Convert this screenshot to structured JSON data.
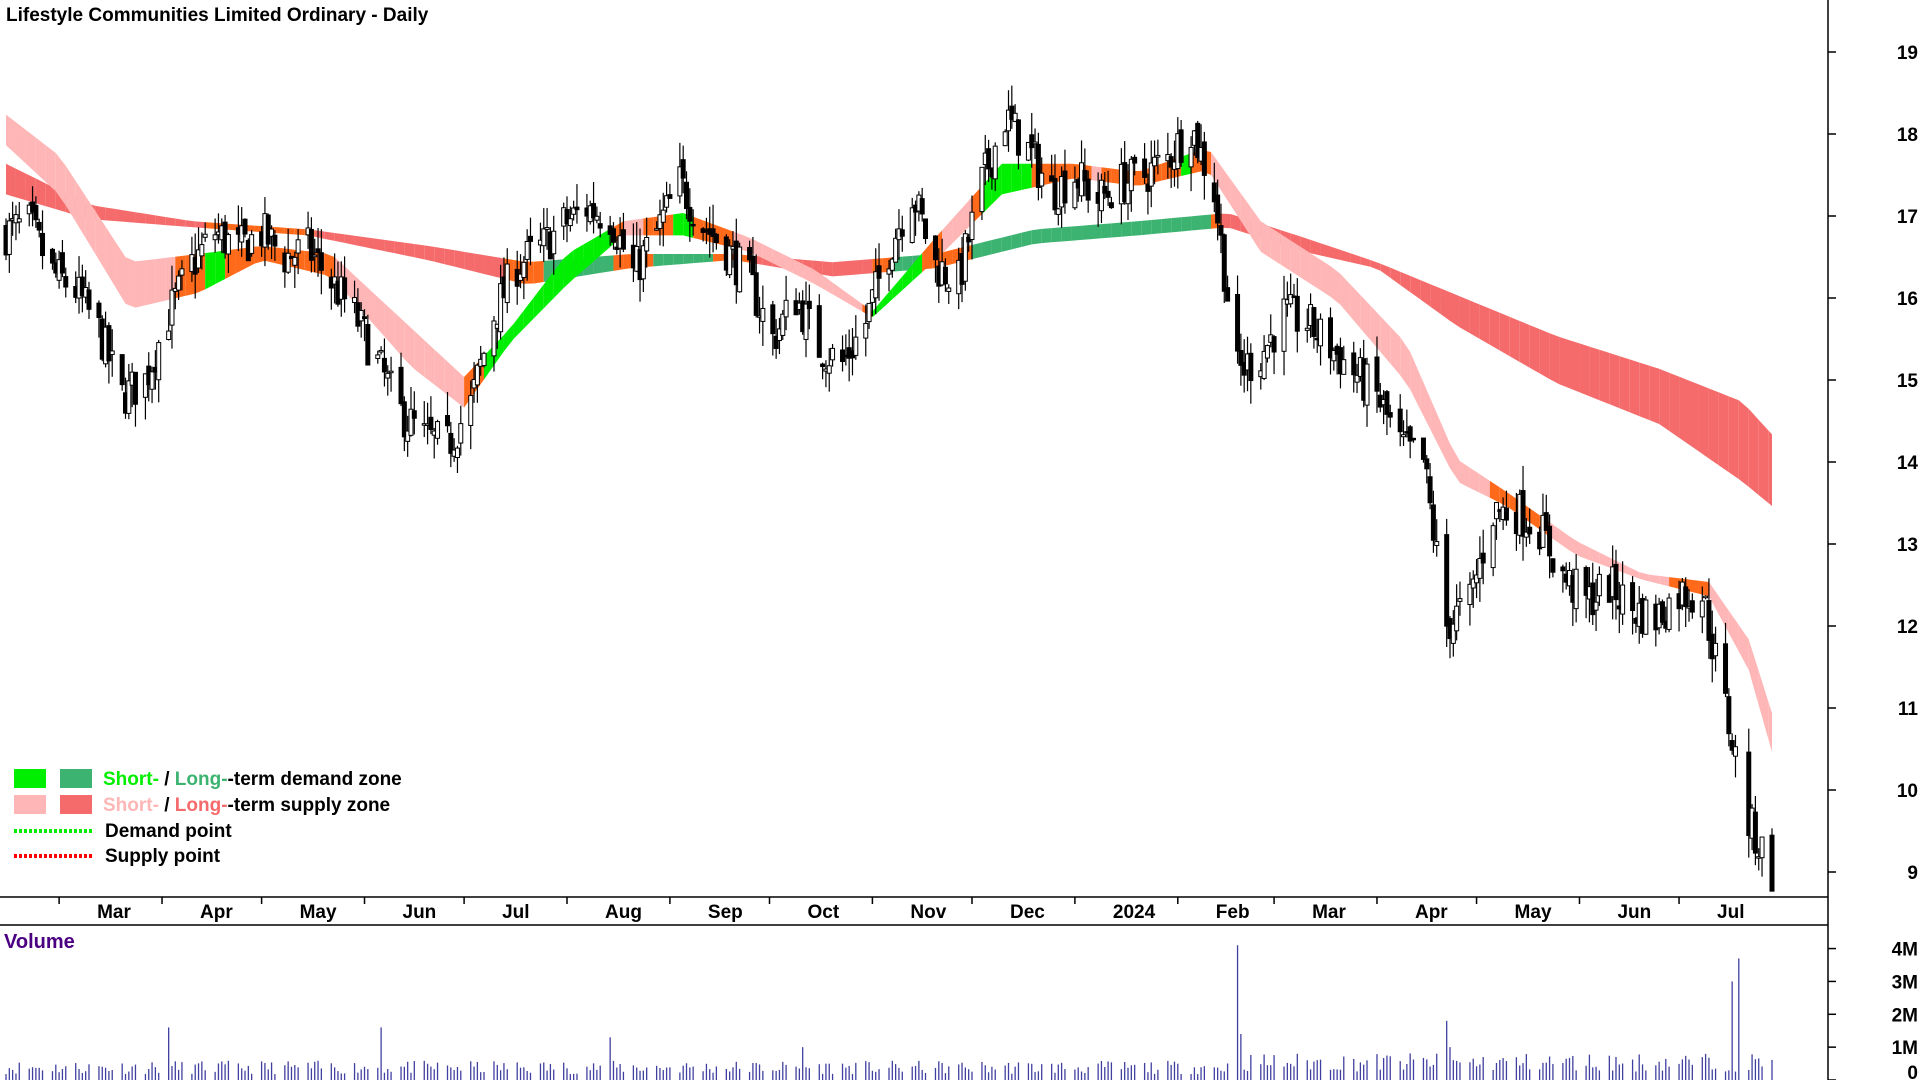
{
  "chart_data": {
    "type": "candlestick",
    "title": "Lifestyle Communities Limited Ordinary - Daily",
    "price_axis": {
      "ticks": [
        9,
        10,
        11,
        12,
        13,
        14,
        15,
        16,
        17,
        18,
        19
      ],
      "labels": [
        "9",
        "10",
        "11",
        "12",
        "13",
        "14",
        "15",
        "16",
        "17",
        "18",
        "19"
      ],
      "range": [
        8.7,
        19.6
      ]
    },
    "x_axis": {
      "start": "2023-02-13",
      "end": "2024-07-29",
      "months": [
        {
          "label": "Mar",
          "date": "2023-03-01"
        },
        {
          "label": "Apr",
          "date": "2023-04-01"
        },
        {
          "label": "May",
          "date": "2023-05-01"
        },
        {
          "label": "Jun",
          "date": "2023-06-01"
        },
        {
          "label": "Jul",
          "date": "2023-07-01"
        },
        {
          "label": "Aug",
          "date": "2023-08-01"
        },
        {
          "label": "Sep",
          "date": "2023-09-01"
        },
        {
          "label": "Oct",
          "date": "2023-10-01"
        },
        {
          "label": "Nov",
          "date": "2023-11-01"
        },
        {
          "label": "Dec",
          "date": "2023-12-01"
        },
        {
          "label": "2024",
          "date": "2024-01-01"
        },
        {
          "label": "Feb",
          "date": "2024-02-01"
        },
        {
          "label": "Mar",
          "date": "2024-03-01"
        },
        {
          "label": "Apr",
          "date": "2024-04-01"
        },
        {
          "label": "May",
          "date": "2024-05-01"
        },
        {
          "label": "Jun",
          "date": "2024-06-01"
        },
        {
          "label": "Jul",
          "date": "2024-07-01"
        }
      ]
    },
    "price_path": [
      [
        "2023-02-13",
        16.8
      ],
      [
        "2023-02-20",
        16.9
      ],
      [
        "2023-02-27",
        16.3
      ],
      [
        "2023-03-06",
        16.1
      ],
      [
        "2023-03-13",
        15.6
      ],
      [
        "2023-03-20",
        14.8
      ],
      [
        "2023-03-27",
        15.0
      ],
      [
        "2023-04-03",
        15.8
      ],
      [
        "2023-04-10",
        16.4
      ],
      [
        "2023-04-17",
        16.8
      ],
      [
        "2023-04-24",
        16.6
      ],
      [
        "2023-05-01",
        16.8
      ],
      [
        "2023-05-08",
        16.5
      ],
      [
        "2023-05-15",
        16.6
      ],
      [
        "2023-05-22",
        16.2
      ],
      [
        "2023-05-29",
        15.8
      ],
      [
        "2023-06-05",
        15.2
      ],
      [
        "2023-06-12",
        14.6
      ],
      [
        "2023-06-19",
        14.3
      ],
      [
        "2023-06-26",
        14.2
      ],
      [
        "2023-07-03",
        14.7
      ],
      [
        "2023-07-10",
        15.8
      ],
      [
        "2023-07-17",
        16.4
      ],
      [
        "2023-07-24",
        16.6
      ],
      [
        "2023-07-31",
        16.9
      ],
      [
        "2023-08-07",
        17.1
      ],
      [
        "2023-08-14",
        17.0
      ],
      [
        "2023-08-21",
        16.3
      ],
      [
        "2023-08-28",
        16.8
      ],
      [
        "2023-09-04",
        17.4
      ],
      [
        "2023-09-11",
        16.9
      ],
      [
        "2023-09-18",
        16.6
      ],
      [
        "2023-09-25",
        16.2
      ],
      [
        "2023-10-02",
        15.5
      ],
      [
        "2023-10-09",
        16.0
      ],
      [
        "2023-10-16",
        15.4
      ],
      [
        "2023-10-23",
        15.2
      ],
      [
        "2023-10-30",
        15.7
      ],
      [
        "2023-11-06",
        16.6
      ],
      [
        "2023-11-13",
        17.3
      ],
      [
        "2023-11-20",
        16.4
      ],
      [
        "2023-11-27",
        16.2
      ],
      [
        "2023-12-04",
        17.4
      ],
      [
        "2023-12-11",
        18.2
      ],
      [
        "2023-12-18",
        17.8
      ],
      [
        "2023-12-25",
        17.3
      ],
      [
        "2024-01-01",
        17.5
      ],
      [
        "2024-01-08",
        17.2
      ],
      [
        "2024-01-15",
        17.4
      ],
      [
        "2024-01-22",
        17.5
      ],
      [
        "2024-01-29",
        17.7
      ],
      [
        "2024-02-05",
        18.1
      ],
      [
        "2024-02-12",
        17.3
      ],
      [
        "2024-02-19",
        15.1
      ],
      [
        "2024-02-26",
        15.3
      ],
      [
        "2024-03-04",
        15.8
      ],
      [
        "2024-03-11",
        15.7
      ],
      [
        "2024-03-18",
        15.4
      ],
      [
        "2024-03-25",
        15.1
      ],
      [
        "2024-04-01",
        14.8
      ],
      [
        "2024-04-08",
        14.2
      ],
      [
        "2024-04-15",
        14.0
      ],
      [
        "2024-04-22",
        12.0
      ],
      [
        "2024-04-29",
        12.3
      ],
      [
        "2024-05-06",
        13.4
      ],
      [
        "2024-05-13",
        13.4
      ],
      [
        "2024-05-20",
        13.2
      ],
      [
        "2024-05-27",
        12.6
      ],
      [
        "2024-06-03",
        12.3
      ],
      [
        "2024-06-10",
        12.5
      ],
      [
        "2024-06-17",
        12.2
      ],
      [
        "2024-06-24",
        12.1
      ],
      [
        "2024-07-01",
        12.4
      ],
      [
        "2024-07-08",
        12.4
      ],
      [
        "2024-07-15",
        11.0
      ],
      [
        "2024-07-22",
        9.6
      ],
      [
        "2024-07-29",
        9.0
      ]
    ],
    "short_zone": [
      [
        "2023-02-13",
        17.9,
        18.2
      ],
      [
        "2023-03-01",
        17.3,
        17.7
      ],
      [
        "2023-03-22",
        15.9,
        16.4
      ],
      [
        "2023-04-12",
        16.1,
        16.5
      ],
      [
        "2023-05-01",
        16.5,
        16.6
      ],
      [
        "2023-05-22",
        16.3,
        16.5
      ],
      [
        "2023-06-15",
        15.2,
        15.6
      ],
      [
        "2023-07-01",
        14.7,
        15.0
      ],
      [
        "2023-07-15",
        15.5,
        15.6
      ],
      [
        "2023-08-01",
        16.2,
        16.5
      ],
      [
        "2023-08-18",
        16.8,
        16.9
      ],
      [
        "2023-09-05",
        16.8,
        17.0
      ],
      [
        "2023-09-25",
        16.6,
        16.7
      ],
      [
        "2023-10-15",
        16.2,
        16.3
      ],
      [
        "2023-11-01",
        15.8,
        15.8
      ],
      [
        "2023-11-20",
        16.5,
        16.7
      ],
      [
        "2023-12-10",
        17.3,
        17.6
      ],
      [
        "2024-01-01",
        17.5,
        17.6
      ],
      [
        "2024-01-20",
        17.4,
        17.5
      ],
      [
        "2024-02-10",
        17.6,
        17.8
      ],
      [
        "2024-02-26",
        16.6,
        16.9
      ],
      [
        "2024-03-20",
        16.0,
        16.3
      ],
      [
        "2024-04-10",
        15.0,
        15.4
      ],
      [
        "2024-04-25",
        13.8,
        14.0
      ],
      [
        "2024-05-10",
        13.5,
        13.6
      ],
      [
        "2024-05-31",
        12.9,
        13.0
      ],
      [
        "2024-06-20",
        12.6,
        12.6
      ],
      [
        "2024-07-10",
        12.4,
        12.5
      ],
      [
        "2024-07-22",
        11.5,
        11.8
      ],
      [
        "2024-07-29",
        10.5,
        10.9
      ]
    ],
    "long_zone": [
      [
        "2023-02-13",
        17.3,
        17.6
      ],
      [
        "2023-03-10",
        17.0,
        17.1
      ],
      [
        "2023-04-10",
        16.9,
        16.9
      ],
      [
        "2023-05-15",
        16.8,
        16.8
      ],
      [
        "2023-06-20",
        16.5,
        16.6
      ],
      [
        "2023-07-20",
        16.2,
        16.4
      ],
      [
        "2023-08-20",
        16.4,
        16.5
      ],
      [
        "2023-09-20",
        16.5,
        16.5
      ],
      [
        "2023-10-20",
        16.3,
        16.4
      ],
      [
        "2023-11-20",
        16.4,
        16.5
      ],
      [
        "2023-12-20",
        16.7,
        16.8
      ],
      [
        "2024-01-20",
        16.8,
        16.9
      ],
      [
        "2024-02-16",
        16.9,
        17.0
      ],
      [
        "2024-03-10",
        16.6,
        16.7
      ],
      [
        "2024-04-01",
        16.4,
        16.4
      ],
      [
        "2024-04-25",
        15.7,
        16.0
      ],
      [
        "2024-05-25",
        15.0,
        15.5
      ],
      [
        "2024-06-25",
        14.5,
        15.1
      ],
      [
        "2024-07-20",
        13.8,
        14.7
      ],
      [
        "2024-07-29",
        13.5,
        14.3
      ]
    ],
    "volume": {
      "label": "Volume",
      "ticks": [
        0,
        1,
        2,
        3,
        4
      ],
      "labels": [
        "0",
        "1M",
        "2M",
        "3M",
        "4M"
      ],
      "spikes": [
        [
          "2023-04-03",
          1.6
        ],
        [
          "2023-05-07",
          1.8
        ],
        [
          "2023-06-06",
          1.6
        ],
        [
          "2023-08-14",
          1.3
        ],
        [
          "2023-10-11",
          1.0
        ],
        [
          "2024-02-19",
          4.1
        ],
        [
          "2024-02-20",
          1.4
        ],
        [
          "2024-04-22",
          1.8
        ],
        [
          "2024-04-23",
          1.0
        ],
        [
          "2024-07-17",
          3.0
        ],
        [
          "2024-07-19",
          3.7
        ],
        [
          "2024-07-20",
          1.2
        ]
      ],
      "typical": 0.45
    },
    "legend": [
      {
        "key": "demand",
        "part1": "Short-",
        "sep": " / ",
        "part2": "Long-",
        "rest": "-term demand zone",
        "color1": "#00ee00",
        "color2": "#3cb371"
      },
      {
        "key": "supply",
        "part1": "Short-",
        "sep": " / ",
        "part2": "Long-",
        "rest": "-term supply zone",
        "color1": "#ffb6b6",
        "color2": "#f56b6b"
      },
      {
        "key": "dpoint",
        "text": "Demand point",
        "color": "#00ee00"
      },
      {
        "key": "spoint",
        "text": "Supply point",
        "color": "#ff0000"
      }
    ],
    "colors": {
      "demand_short": "#00ee00",
      "demand_long": "#3cb371",
      "supply_short": "#ffb6b6",
      "supply_long": "#f56b6b",
      "transition": "#ff6a1a",
      "volume_bar": "#4040a0"
    }
  }
}
